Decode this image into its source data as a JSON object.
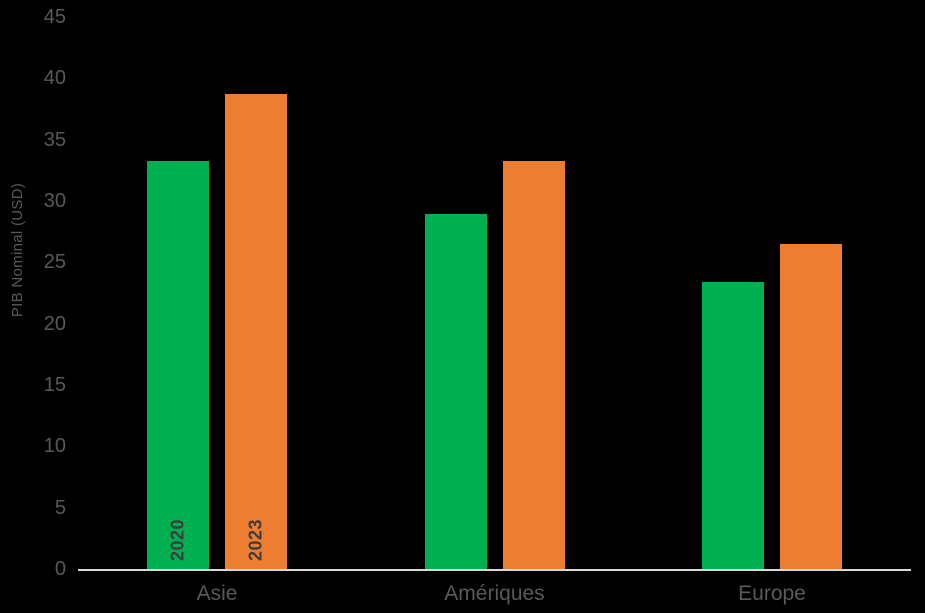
{
  "chart_data": {
    "type": "bar",
    "title": "",
    "categories": [
      "Asie",
      "Amériques",
      "Europe"
    ],
    "series": [
      {
        "name": "2020",
        "color": "#00B050",
        "values": [
          33.3,
          28.9,
          23.4
        ]
      },
      {
        "name": "2023",
        "color": "#ED7D31",
        "values": [
          38.7,
          33.3,
          26.5
        ]
      }
    ],
    "xlabel": "",
    "ylabel": "PIB Nominal (USD)",
    "ylim": [
      0,
      45
    ],
    "yticks": [
      0,
      5,
      10,
      15,
      20,
      25,
      30,
      35,
      40,
      45
    ],
    "grid": false,
    "legend_position": "none",
    "series_labels_shown_inside_bars_of_category": "Asie"
  },
  "colors": {
    "background": "#000000",
    "axis_line": "#D9D9D9",
    "tick_text": "#595959",
    "category_text": "#595959",
    "year_label_text": "#3D3D3D"
  }
}
